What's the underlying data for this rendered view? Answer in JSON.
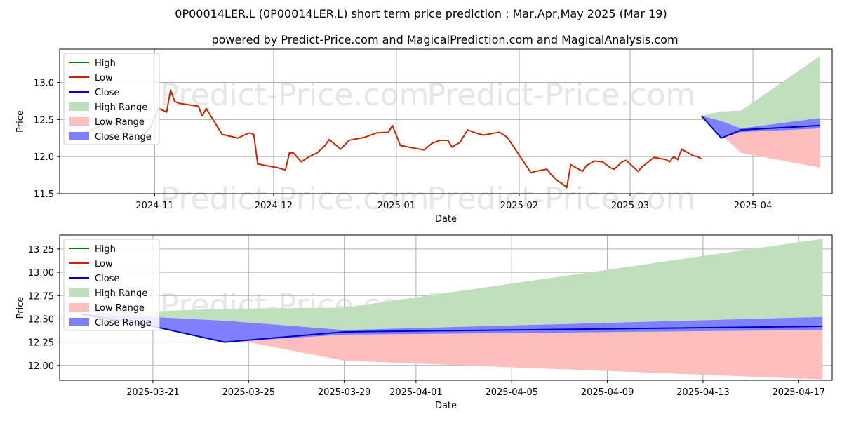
{
  "titles": {
    "main": "0P00014LER.L (0P00014LER.L) short term price prediction : Mar,Apr,May 2025 (Mar 19)",
    "sub": "powered by Predict-Price.com and MagicalPrediction.com and MagicalAnalysis.com"
  },
  "watermark": "Predict-Price.com",
  "legend": [
    "High",
    "Low",
    "Close",
    "High Range",
    "Low Range",
    "Close Range"
  ],
  "colors": {
    "high": "#008000",
    "low": "#cc2200",
    "close": "#0000cc",
    "high_range": "#c0dfbd",
    "low_range": "#ffbebe",
    "close_range": "#7f7fff",
    "grid": "#b0b0b0"
  },
  "chart_data": [
    {
      "type": "line",
      "xlabel": "Date",
      "ylabel": "Price",
      "ylim": [
        11.5,
        13.45
      ],
      "xlim": [
        "2024-10-08",
        "2025-04-21"
      ],
      "yticks": [
        "11.5",
        "12.0",
        "12.5",
        "13.0"
      ],
      "xticks": [
        "2024-11",
        "2024-12",
        "2025-01",
        "2025-02",
        "2025-03",
        "2025-04"
      ],
      "grid": true,
      "legend_position": "top-left",
      "series": [
        {
          "name": "Low",
          "x": [
            "2024-10-10",
            "2024-10-14",
            "2024-10-17",
            "2024-10-21",
            "2024-10-24",
            "2024-10-28",
            "2024-10-31",
            "2024-11-02",
            "2024-11-04",
            "2024-11-05",
            "2024-11-06",
            "2024-11-07",
            "2024-11-12",
            "2024-11-13",
            "2024-11-14",
            "2024-11-18",
            "2024-11-22",
            "2024-11-24",
            "2024-11-25",
            "2024-11-26",
            "2024-11-27",
            "2024-12-02",
            "2024-12-04",
            "2024-12-05",
            "2024-12-06",
            "2024-12-08",
            "2024-12-10",
            "2024-12-12",
            "2024-12-14",
            "2024-12-15",
            "2024-12-18",
            "2024-12-20",
            "2024-12-22",
            "2024-12-24",
            "2024-12-27",
            "2024-12-30",
            "2024-12-31",
            "2025-01-02",
            "2025-01-08",
            "2025-01-10",
            "2025-01-12",
            "2025-01-14",
            "2025-01-15",
            "2025-01-17",
            "2025-01-19",
            "2025-01-21",
            "2025-01-23",
            "2025-01-25",
            "2025-01-27",
            "2025-01-29",
            "2025-02-04",
            "2025-02-05",
            "2025-02-06",
            "2025-02-08",
            "2025-02-09",
            "2025-02-11",
            "2025-02-12",
            "2025-02-13",
            "2025-02-14",
            "2025-02-17",
            "2025-02-18",
            "2025-02-19",
            "2025-02-20",
            "2025-02-22",
            "2025-02-24",
            "2025-02-25",
            "2025-02-27",
            "2025-02-28",
            "2025-03-03",
            "2025-03-04",
            "2025-03-07",
            "2025-03-10",
            "2025-03-11",
            "2025-03-12",
            "2025-03-13",
            "2025-03-14",
            "2025-03-17",
            "2025-03-18",
            "2025-03-19"
          ],
          "y": [
            12.3,
            12.32,
            12.38,
            12.48,
            12.35,
            12.22,
            12.4,
            12.65,
            12.6,
            12.9,
            12.75,
            12.72,
            12.68,
            12.55,
            12.65,
            12.3,
            12.25,
            12.3,
            12.32,
            12.3,
            11.9,
            11.85,
            11.82,
            12.05,
            12.05,
            11.93,
            12.0,
            12.05,
            12.15,
            12.23,
            12.1,
            12.22,
            12.24,
            12.26,
            12.32,
            12.33,
            12.42,
            12.15,
            12.09,
            12.18,
            12.22,
            12.22,
            12.13,
            12.19,
            12.36,
            12.32,
            12.29,
            12.31,
            12.33,
            12.26,
            11.78,
            11.8,
            11.81,
            11.83,
            11.76,
            11.66,
            11.63,
            11.58,
            11.89,
            11.8,
            11.88,
            11.91,
            11.94,
            11.93,
            11.85,
            11.83,
            11.93,
            11.95,
            11.8,
            11.86,
            11.99,
            11.96,
            11.93,
            12.0,
            11.96,
            12.1,
            12.01,
            12.0,
            11.97
          ]
        },
        {
          "name": "Close",
          "x": [
            "2025-03-19",
            "2025-03-24",
            "2025-03-29",
            "2025-04-18"
          ],
          "y": [
            12.55,
            12.25,
            12.36,
            12.42
          ]
        }
      ],
      "ranges": {
        "x": [
          "2025-03-19",
          "2025-03-24",
          "2025-03-29",
          "2025-04-18"
        ],
        "high_upper": [
          12.55,
          12.61,
          12.62,
          13.36
        ],
        "low_lower": [
          12.55,
          12.3,
          12.05,
          11.85
        ],
        "close_upper": [
          12.55,
          12.48,
          12.38,
          12.52
        ],
        "close_lower": [
          12.55,
          12.25,
          12.33,
          12.38
        ]
      }
    },
    {
      "type": "line",
      "xlabel": "Date",
      "ylabel": "Price",
      "ylim": [
        11.84,
        13.4
      ],
      "xlim": [
        "2025-03-17.1",
        "2025-04-18.4"
      ],
      "yticks": [
        "12.00",
        "12.25",
        "12.50",
        "12.75",
        "13.00",
        "13.25"
      ],
      "xticks": [
        "2025-03-21",
        "2025-03-25",
        "2025-03-29",
        "2025-04-01",
        "2025-04-05",
        "2025-04-09",
        "2025-04-13",
        "2025-04-17"
      ],
      "grid": true,
      "legend_position": "top-left",
      "series": [
        {
          "name": "Close",
          "x": [
            "2025-03-18",
            "2025-03-21",
            "2025-03-24",
            "2025-03-29",
            "2025-04-18"
          ],
          "y": [
            12.55,
            12.42,
            12.25,
            12.36,
            12.42
          ]
        }
      ],
      "ranges": {
        "x": [
          "2025-03-18",
          "2025-03-21",
          "2025-03-24",
          "2025-03-29",
          "2025-04-18"
        ],
        "high_upper": [
          12.55,
          12.58,
          12.61,
          12.62,
          13.36
        ],
        "low_lower": [
          12.55,
          12.43,
          12.3,
          12.05,
          11.85
        ],
        "close_upper": [
          12.55,
          12.52,
          12.48,
          12.38,
          12.52
        ],
        "close_lower": [
          12.55,
          12.42,
          12.25,
          12.33,
          12.38
        ]
      }
    }
  ]
}
